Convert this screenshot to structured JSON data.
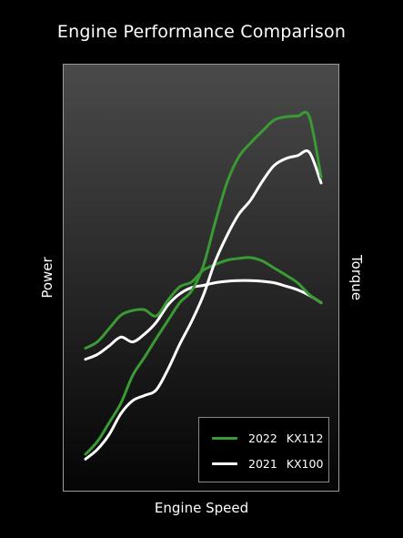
{
  "chart_data": {
    "type": "line",
    "title": "Engine Performance Comparison",
    "xlabel": "Engine Speed",
    "ylabel_left": "Power",
    "ylabel_right": "Torque",
    "xlim": [
      0,
      100
    ],
    "ylim": [
      0,
      100
    ],
    "axis_ticks": false,
    "grid": false,
    "legend_position": "bottom-right",
    "series": [
      {
        "name": "2022 KX112",
        "metric": "Power",
        "color": "#3a9a35",
        "x": [
          0,
          5,
          10,
          15,
          20,
          25,
          30,
          35,
          40,
          45,
          50,
          55,
          60,
          65,
          70,
          75,
          80,
          85,
          90,
          95,
          100
        ],
        "y": [
          6.4,
          9.8,
          14.9,
          20.2,
          27.7,
          32.6,
          37.7,
          42.6,
          47.4,
          50.6,
          57.4,
          69.1,
          79.8,
          86.8,
          90.6,
          93.8,
          96.8,
          97.7,
          97.9,
          97.7,
          81.3
        ]
      },
      {
        "name": "2021 KX100",
        "metric": "Power",
        "color": "#ffffff",
        "x": [
          0,
          5,
          10,
          15,
          20,
          25,
          30,
          35,
          40,
          45,
          50,
          55,
          60,
          65,
          70,
          75,
          80,
          85,
          90,
          95,
          100
        ],
        "y": [
          5.1,
          7.7,
          11.7,
          17.4,
          20.9,
          22.3,
          23.8,
          29.4,
          36.2,
          42.3,
          49.4,
          58.5,
          65.5,
          71.3,
          75.1,
          80.2,
          84.5,
          86.4,
          87.2,
          88.1,
          79.8
        ]
      },
      {
        "name": "2022 KX112",
        "metric": "Torque",
        "color": "#3a9a35",
        "x": [
          0,
          5,
          10,
          15,
          20,
          25,
          30,
          35,
          40,
          45,
          50,
          55,
          60,
          65,
          70,
          75,
          80,
          85,
          90,
          95,
          100
        ],
        "y": [
          35.1,
          36.8,
          40.4,
          44.0,
          45.3,
          45.5,
          43.8,
          48.1,
          51.7,
          53.0,
          56.2,
          57.7,
          58.9,
          59.4,
          59.6,
          58.7,
          56.8,
          54.9,
          52.8,
          49.6,
          47.4
        ]
      },
      {
        "name": "2021 KX100",
        "metric": "Torque",
        "color": "#ffffff",
        "x": [
          0,
          5,
          10,
          15,
          20,
          25,
          30,
          35,
          40,
          45,
          50,
          55,
          60,
          65,
          70,
          75,
          80,
          85,
          90,
          95,
          100
        ],
        "y": [
          32.1,
          33.4,
          35.7,
          38.1,
          36.8,
          38.9,
          42.1,
          46.8,
          49.8,
          51.5,
          52.1,
          52.8,
          53.2,
          53.4,
          53.4,
          53.2,
          52.8,
          51.9,
          50.9,
          49.4,
          47.4
        ]
      }
    ]
  }
}
